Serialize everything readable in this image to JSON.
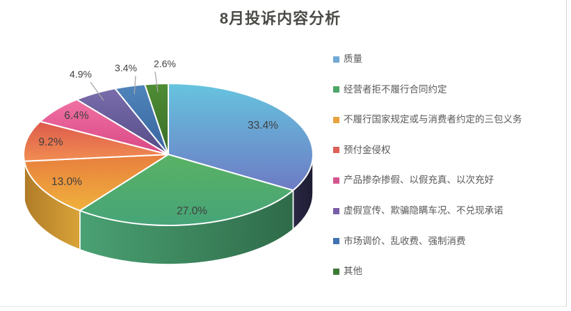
{
  "title": "8月投诉内容分析",
  "chart_data": {
    "type": "pie",
    "style": "3d-exploded-none",
    "unit": "%",
    "title": "8月投诉内容分析",
    "legend_position": "right",
    "label_color": "#3f3f3f",
    "leader_line_color": "#a6a6a6",
    "slice_border_color": "#ffffff",
    "slices": [
      {
        "label": "质量",
        "value": 33.4,
        "pct_label": "33.4%",
        "color": "#6fa9d4",
        "top_gradient": [
          "#66c4df",
          "#6d7bc4"
        ],
        "side_gradient": [
          "#2a2844",
          "#1d1c33"
        ]
      },
      {
        "label": "经营者拒不履行合同约定",
        "value": 27.0,
        "pct_label": "27.0%",
        "color": "#4ca566",
        "top_gradient": [
          "#5ab264",
          "#46a478"
        ],
        "side_gradient": [
          "#4aa173",
          "#2f6b49"
        ]
      },
      {
        "label": "不履行国家规定或与消费者约定的三包义务",
        "value": 13.0,
        "pct_label": "13.0%",
        "color": "#e8a23d",
        "top_gradient": [
          "#e87e3e",
          "#f0b13c"
        ],
        "side_gradient": [
          "#b07c28",
          "#d9a338"
        ]
      },
      {
        "label": "预付金侵权",
        "value": 9.2,
        "pct_label": "9.2%",
        "color": "#dd6056",
        "top_gradient": [
          "#dd5a4c",
          "#f18d52"
        ],
        "side_gradient": [
          "#c4523f",
          "#cc5a44"
        ]
      },
      {
        "label": "产品掺杂掺假、以假充真、以次充好",
        "value": 6.4,
        "pct_label": "6.4%",
        "color": "#d4548e",
        "top_gradient": [
          "#f071a3",
          "#d94885"
        ],
        "side_gradient": [
          "#b03e6e",
          "#b03e6e"
        ]
      },
      {
        "label": "虚假宣传、欺骗隐瞒车况、不兑现承诺",
        "value": 4.9,
        "pct_label": "4.9%",
        "color": "#7a5ea6",
        "top_gradient": [
          "#7a6dac",
          "#544c87"
        ],
        "side_gradient": [
          "#554d88",
          "#554d88"
        ]
      },
      {
        "label": "市场调价、乱收费、强制消费",
        "value": 3.4,
        "pct_label": "3.4%",
        "color": "#3f72b0",
        "top_gradient": [
          "#4f85bb",
          "#39649e"
        ],
        "side_gradient": [
          "#345a8e",
          "#345a8e"
        ]
      },
      {
        "label": "其他",
        "value": 2.6,
        "pct_label": "2.6%",
        "color": "#3d7a35",
        "top_gradient": [
          "#4f8d35",
          "#396d28"
        ],
        "side_gradient": [
          "#335f26",
          "#335f26"
        ]
      }
    ]
  }
}
